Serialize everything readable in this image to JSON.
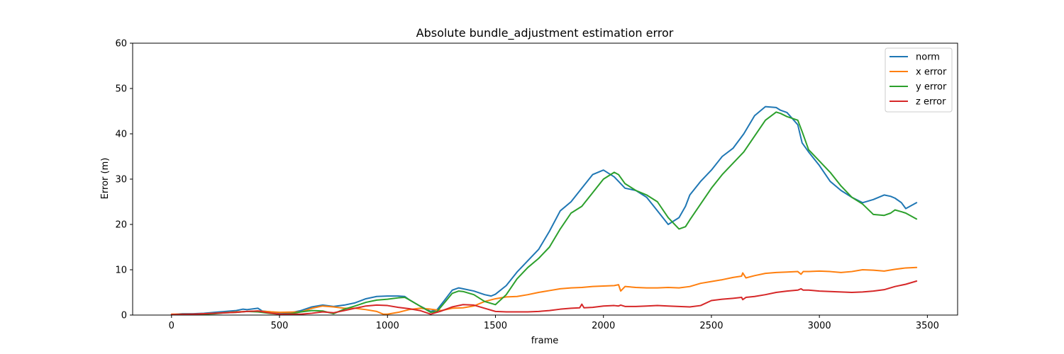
{
  "chart_data": {
    "type": "line",
    "title": "Absolute bundle_adjustment estimation error",
    "xlabel": "frame",
    "ylabel": "Error (m)",
    "xlim": [
      -180,
      3640
    ],
    "ylim": [
      0,
      60
    ],
    "xticks": [
      0,
      500,
      1000,
      1500,
      2000,
      2500,
      3000,
      3500
    ],
    "yticks": [
      0,
      10,
      20,
      30,
      40,
      50,
      60
    ],
    "grid": false,
    "legend_position": "top-right",
    "series": [
      {
        "name": "norm",
        "color": "#1f77b4",
        "x": [
          0,
          50,
          100,
          150,
          200,
          250,
          300,
          330,
          350,
          400,
          420,
          500,
          550,
          600,
          650,
          700,
          750,
          800,
          850,
          900,
          950,
          1000,
          1050,
          1080,
          1100,
          1150,
          1200,
          1230,
          1260,
          1300,
          1330,
          1350,
          1400,
          1450,
          1480,
          1500,
          1550,
          1600,
          1650,
          1700,
          1750,
          1800,
          1850,
          1900,
          1950,
          2000,
          2050,
          2070,
          2100,
          2150,
          2200,
          2250,
          2300,
          2350,
          2380,
          2400,
          2450,
          2500,
          2550,
          2600,
          2650,
          2700,
          2750,
          2800,
          2820,
          2850,
          2900,
          2920,
          2950,
          3000,
          3050,
          3100,
          3150,
          3200,
          3250,
          3300,
          3330,
          3350,
          3380,
          3400,
          3450
        ],
        "values": [
          0.1,
          0.3,
          0.3,
          0.4,
          0.6,
          0.8,
          1.0,
          1.3,
          1.2,
          1.5,
          0.9,
          0.5,
          0.5,
          1.0,
          1.8,
          2.2,
          1.9,
          2.2,
          2.7,
          3.6,
          4.1,
          4.2,
          4.2,
          4.1,
          3.4,
          2.0,
          0.8,
          1.2,
          3.0,
          5.5,
          6.0,
          5.8,
          5.3,
          4.5,
          4.2,
          4.6,
          6.5,
          9.5,
          12.0,
          14.5,
          18.5,
          23.0,
          25.0,
          28.0,
          31.0,
          32.0,
          30.5,
          29.5,
          28.0,
          27.5,
          26.0,
          23.0,
          20.0,
          21.5,
          24.0,
          26.5,
          29.5,
          32.0,
          35.0,
          36.8,
          40.0,
          44.0,
          46.0,
          45.8,
          45.2,
          44.7,
          42.0,
          38.0,
          36.0,
          33.0,
          29.5,
          27.5,
          26.0,
          24.8,
          25.5,
          26.5,
          26.2,
          25.8,
          24.8,
          23.5,
          24.8
        ]
      },
      {
        "name": "x error",
        "color": "#ff7f0e",
        "x": [
          0,
          100,
          200,
          300,
          400,
          500,
          600,
          650,
          700,
          750,
          800,
          850,
          900,
          950,
          980,
          1000,
          1050,
          1100,
          1150,
          1200,
          1250,
          1300,
          1350,
          1400,
          1450,
          1500,
          1550,
          1600,
          1650,
          1700,
          1750,
          1800,
          1850,
          1900,
          1950,
          2000,
          2050,
          2070,
          2080,
          2100,
          2150,
          2200,
          2250,
          2300,
          2350,
          2400,
          2450,
          2500,
          2550,
          2600,
          2640,
          2645,
          2660,
          2700,
          2750,
          2800,
          2850,
          2900,
          2915,
          2925,
          2950,
          3000,
          3050,
          3100,
          3150,
          3200,
          3250,
          3300,
          3350,
          3400,
          3450
        ],
        "values": [
          0.2,
          0.2,
          0.4,
          0.7,
          0.9,
          0.6,
          0.7,
          1.5,
          2.0,
          1.8,
          1.5,
          1.5,
          1.2,
          0.8,
          0.2,
          0.2,
          0.6,
          1.2,
          1.5,
          1.3,
          1.0,
          1.5,
          1.6,
          2.0,
          3.0,
          3.6,
          4.0,
          4.1,
          4.5,
          5.0,
          5.4,
          5.8,
          6.0,
          6.1,
          6.3,
          6.4,
          6.5,
          6.7,
          5.3,
          6.3,
          6.1,
          6.0,
          6.0,
          6.1,
          6.0,
          6.3,
          7.0,
          7.4,
          7.8,
          8.3,
          8.6,
          9.3,
          8.2,
          8.7,
          9.2,
          9.4,
          9.5,
          9.6,
          9.0,
          9.6,
          9.6,
          9.7,
          9.6,
          9.4,
          9.6,
          10.0,
          9.9,
          9.7,
          10.1,
          10.4,
          10.5
        ]
      },
      {
        "name": "y error",
        "color": "#2ca02c",
        "x": [
          0,
          50,
          100,
          150,
          200,
          250,
          300,
          350,
          400,
          450,
          500,
          550,
          600,
          650,
          700,
          750,
          800,
          850,
          900,
          950,
          1000,
          1050,
          1080,
          1100,
          1150,
          1200,
          1230,
          1260,
          1300,
          1330,
          1350,
          1400,
          1450,
          1500,
          1550,
          1600,
          1650,
          1700,
          1750,
          1800,
          1850,
          1900,
          1950,
          2000,
          2050,
          2070,
          2100,
          2150,
          2200,
          2250,
          2300,
          2350,
          2380,
          2400,
          2450,
          2500,
          2550,
          2600,
          2650,
          2700,
          2750,
          2800,
          2820,
          2850,
          2900,
          2920,
          2950,
          3000,
          3050,
          3100,
          3150,
          3200,
          3250,
          3300,
          3330,
          3350,
          3380,
          3400,
          3450
        ],
        "values": [
          0.05,
          0.1,
          0.1,
          0.2,
          0.3,
          0.5,
          0.6,
          0.8,
          0.7,
          0.4,
          0.2,
          0.3,
          0.7,
          1.0,
          0.9,
          0.3,
          1.3,
          2.0,
          2.8,
          3.3,
          3.5,
          3.8,
          3.9,
          3.4,
          2.0,
          0.6,
          0.8,
          2.5,
          4.8,
          5.3,
          5.2,
          4.5,
          3.0,
          2.3,
          4.5,
          8.0,
          10.5,
          12.5,
          15.0,
          19.0,
          22.5,
          24.0,
          27.0,
          30.0,
          31.5,
          31.0,
          29.0,
          27.5,
          26.5,
          25.0,
          21.5,
          19.0,
          19.5,
          21.0,
          24.5,
          28.0,
          31.0,
          33.5,
          36.0,
          39.5,
          43.0,
          44.8,
          44.5,
          43.8,
          43.0,
          40.5,
          36.5,
          34.0,
          31.5,
          28.5,
          26.0,
          24.5,
          22.2,
          22.0,
          22.5,
          23.2,
          22.8,
          22.5,
          21.2
        ]
      },
      {
        "name": "z error",
        "color": "#d62728",
        "x": [
          0,
          100,
          200,
          300,
          350,
          400,
          450,
          500,
          600,
          650,
          700,
          750,
          800,
          850,
          900,
          950,
          1000,
          1050,
          1100,
          1150,
          1200,
          1250,
          1300,
          1350,
          1400,
          1450,
          1500,
          1550,
          1600,
          1650,
          1700,
          1750,
          1800,
          1850,
          1890,
          1900,
          1910,
          1950,
          2000,
          2050,
          2070,
          2080,
          2100,
          2150,
          2200,
          2250,
          2300,
          2350,
          2400,
          2450,
          2500,
          2550,
          2600,
          2640,
          2645,
          2660,
          2700,
          2750,
          2800,
          2850,
          2900,
          2915,
          2925,
          2950,
          3000,
          3050,
          3100,
          3150,
          3200,
          3250,
          3300,
          3350,
          3400,
          3450
        ],
        "values": [
          0.1,
          0.2,
          0.4,
          0.6,
          0.8,
          0.9,
          0.5,
          0.2,
          0.2,
          0.4,
          0.7,
          0.5,
          1.0,
          1.5,
          2.0,
          2.2,
          2.1,
          1.7,
          1.4,
          1.0,
          0.2,
          0.9,
          1.8,
          2.3,
          2.2,
          1.5,
          0.8,
          0.7,
          0.7,
          0.7,
          0.8,
          1.0,
          1.3,
          1.5,
          1.6,
          2.4,
          1.6,
          1.7,
          2.0,
          2.1,
          2.0,
          2.2,
          1.9,
          1.9,
          2.0,
          2.1,
          2.0,
          1.9,
          1.8,
          2.1,
          3.2,
          3.5,
          3.7,
          3.9,
          3.4,
          3.9,
          4.1,
          4.5,
          5.0,
          5.3,
          5.5,
          5.8,
          5.5,
          5.5,
          5.3,
          5.2,
          5.1,
          5.0,
          5.1,
          5.3,
          5.6,
          6.3,
          6.8,
          7.5
        ]
      }
    ]
  }
}
